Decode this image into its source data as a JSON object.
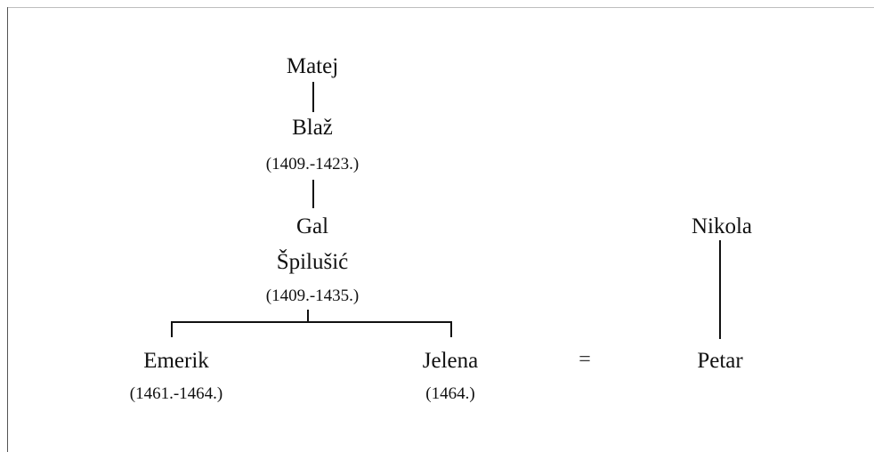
{
  "tree": {
    "matej": {
      "name": "Matej"
    },
    "blaz": {
      "name": "Blaž",
      "dates": "(1409.-1423.)"
    },
    "gal": {
      "name_line1": "Gal",
      "name_line2": "Špilušić",
      "dates": "(1409.-1435.)"
    },
    "emerik": {
      "name": "Emerik",
      "dates": "(1461.-1464.)"
    },
    "jelena": {
      "name": "Jelena",
      "dates": "(1464.)"
    },
    "marriage_symbol": "=",
    "nikola": {
      "name": "Nikola"
    },
    "petar": {
      "name": "Petar"
    }
  },
  "colors": {
    "lines": "#111111",
    "text": "#111111",
    "frame": "#555555"
  }
}
